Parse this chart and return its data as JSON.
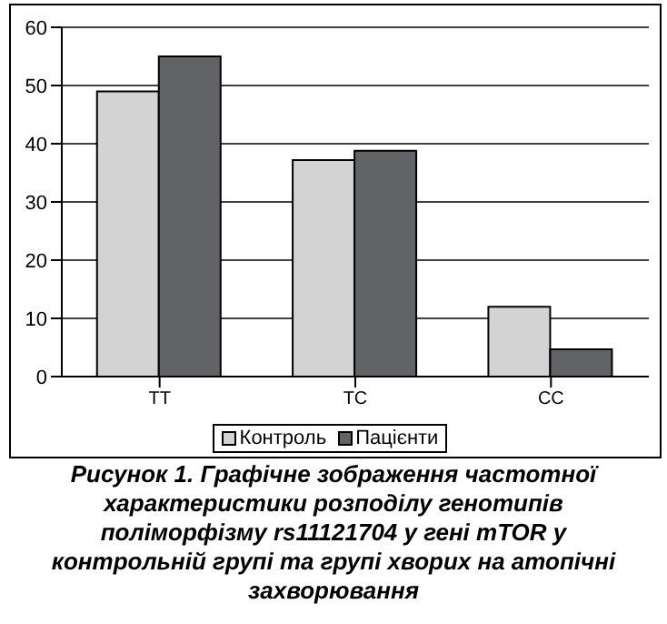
{
  "chart_data": {
    "type": "bar",
    "title": "Рисунок 1. Графічне зображення частотної характеристики розподілу генотипів поліморфізму rs11121704 у гені mTOR у контрольній групі та групі хворих на атопічні захворювання",
    "categories": [
      "TT",
      "TC",
      "CC"
    ],
    "series": [
      {
        "name": "Контроль",
        "color": "#d3d3d3",
        "values": [
          49,
          37.2,
          12
        ]
      },
      {
        "name": "Пацієнти",
        "color": "#626366",
        "values": [
          55,
          38.8,
          4.7
        ]
      }
    ],
    "ylim": [
      0,
      60
    ],
    "yticks": [
      0,
      10,
      20,
      30,
      40,
      50,
      60
    ],
    "grid": "y",
    "legend": "bottom"
  }
}
